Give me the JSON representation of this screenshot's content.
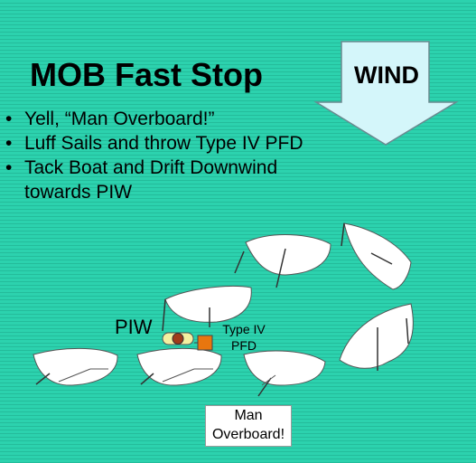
{
  "title": "MOB Fast Stop",
  "bullets": [
    {
      "line1": "Yell, “Man Overboard!”",
      "line2": ""
    },
    {
      "line1": "Luff Sails and throw Type IV PFD",
      "line2": ""
    },
    {
      "line1": "Tack Boat and Drift Downwind",
      "line2": "towards PIW"
    }
  ],
  "wind_label": "WIND",
  "piw_label": "PIW",
  "pfd_label": {
    "line1": "Type IV",
    "line2": "PFD"
  },
  "mob_label": {
    "line1": "Man",
    "line2": "Overboard!"
  },
  "colors": {
    "background": "#2cd2ae",
    "wind_arrow_fill": "#d4f6fa",
    "pfd": "#e8760f",
    "piw_body": "#a03a1a",
    "piw_float": "#f4f0a0"
  }
}
